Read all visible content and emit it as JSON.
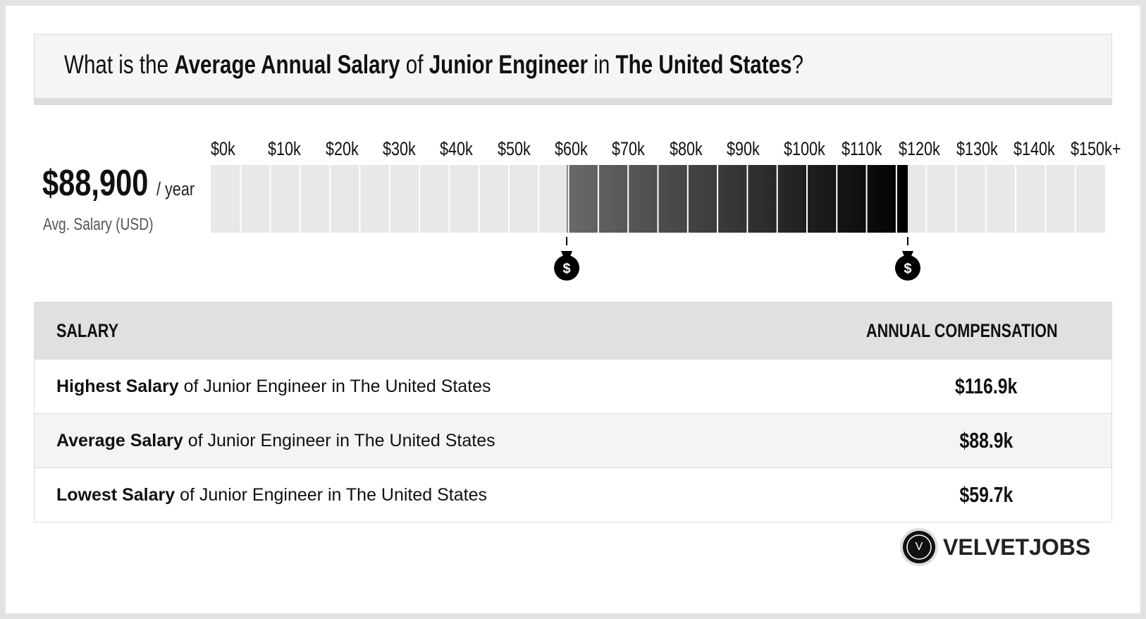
{
  "header": {
    "title_parts": [
      {
        "text": "What is the ",
        "bold": false
      },
      {
        "text": "Average Annual Salary",
        "bold": true
      },
      {
        "text": " of ",
        "bold": false
      },
      {
        "text": "Junior Engineer",
        "bold": true
      },
      {
        "text": " in ",
        "bold": false
      },
      {
        "text": "The United States",
        "bold": true
      },
      {
        "text": "?",
        "bold": false
      }
    ]
  },
  "summary": {
    "amount": "$88,900",
    "unit": "/ year",
    "caption": "Avg. Salary (USD)"
  },
  "scale": {
    "xlim": [
      0,
      150000
    ],
    "ticks": [
      "$0k",
      "$10k",
      "$20k",
      "$30k",
      "$40k",
      "$50k",
      "$60k",
      "$70k",
      "$80k",
      "$90k",
      "$100k",
      "$110k",
      "$120k",
      "$130k",
      "$140k",
      "$150k+"
    ]
  },
  "table": {
    "headers": [
      "SALARY",
      "ANNUAL COMPENSATION"
    ],
    "rows": [
      {
        "label_bold": "Highest Salary",
        "label_rest": " of Junior Engineer in The United States",
        "value": 116900,
        "value_label": "$116.9k"
      },
      {
        "label_bold": "Average Salary",
        "label_rest": " of Junior Engineer in The United States",
        "value": 88900,
        "value_label": "$88.9k"
      },
      {
        "label_bold": "Lowest Salary",
        "label_rest": " of Junior Engineer in The United States",
        "value": 59700,
        "value_label": "$59.7k"
      }
    ]
  },
  "logo": {
    "letter": "V",
    "name": "VELVETJOBS"
  }
}
